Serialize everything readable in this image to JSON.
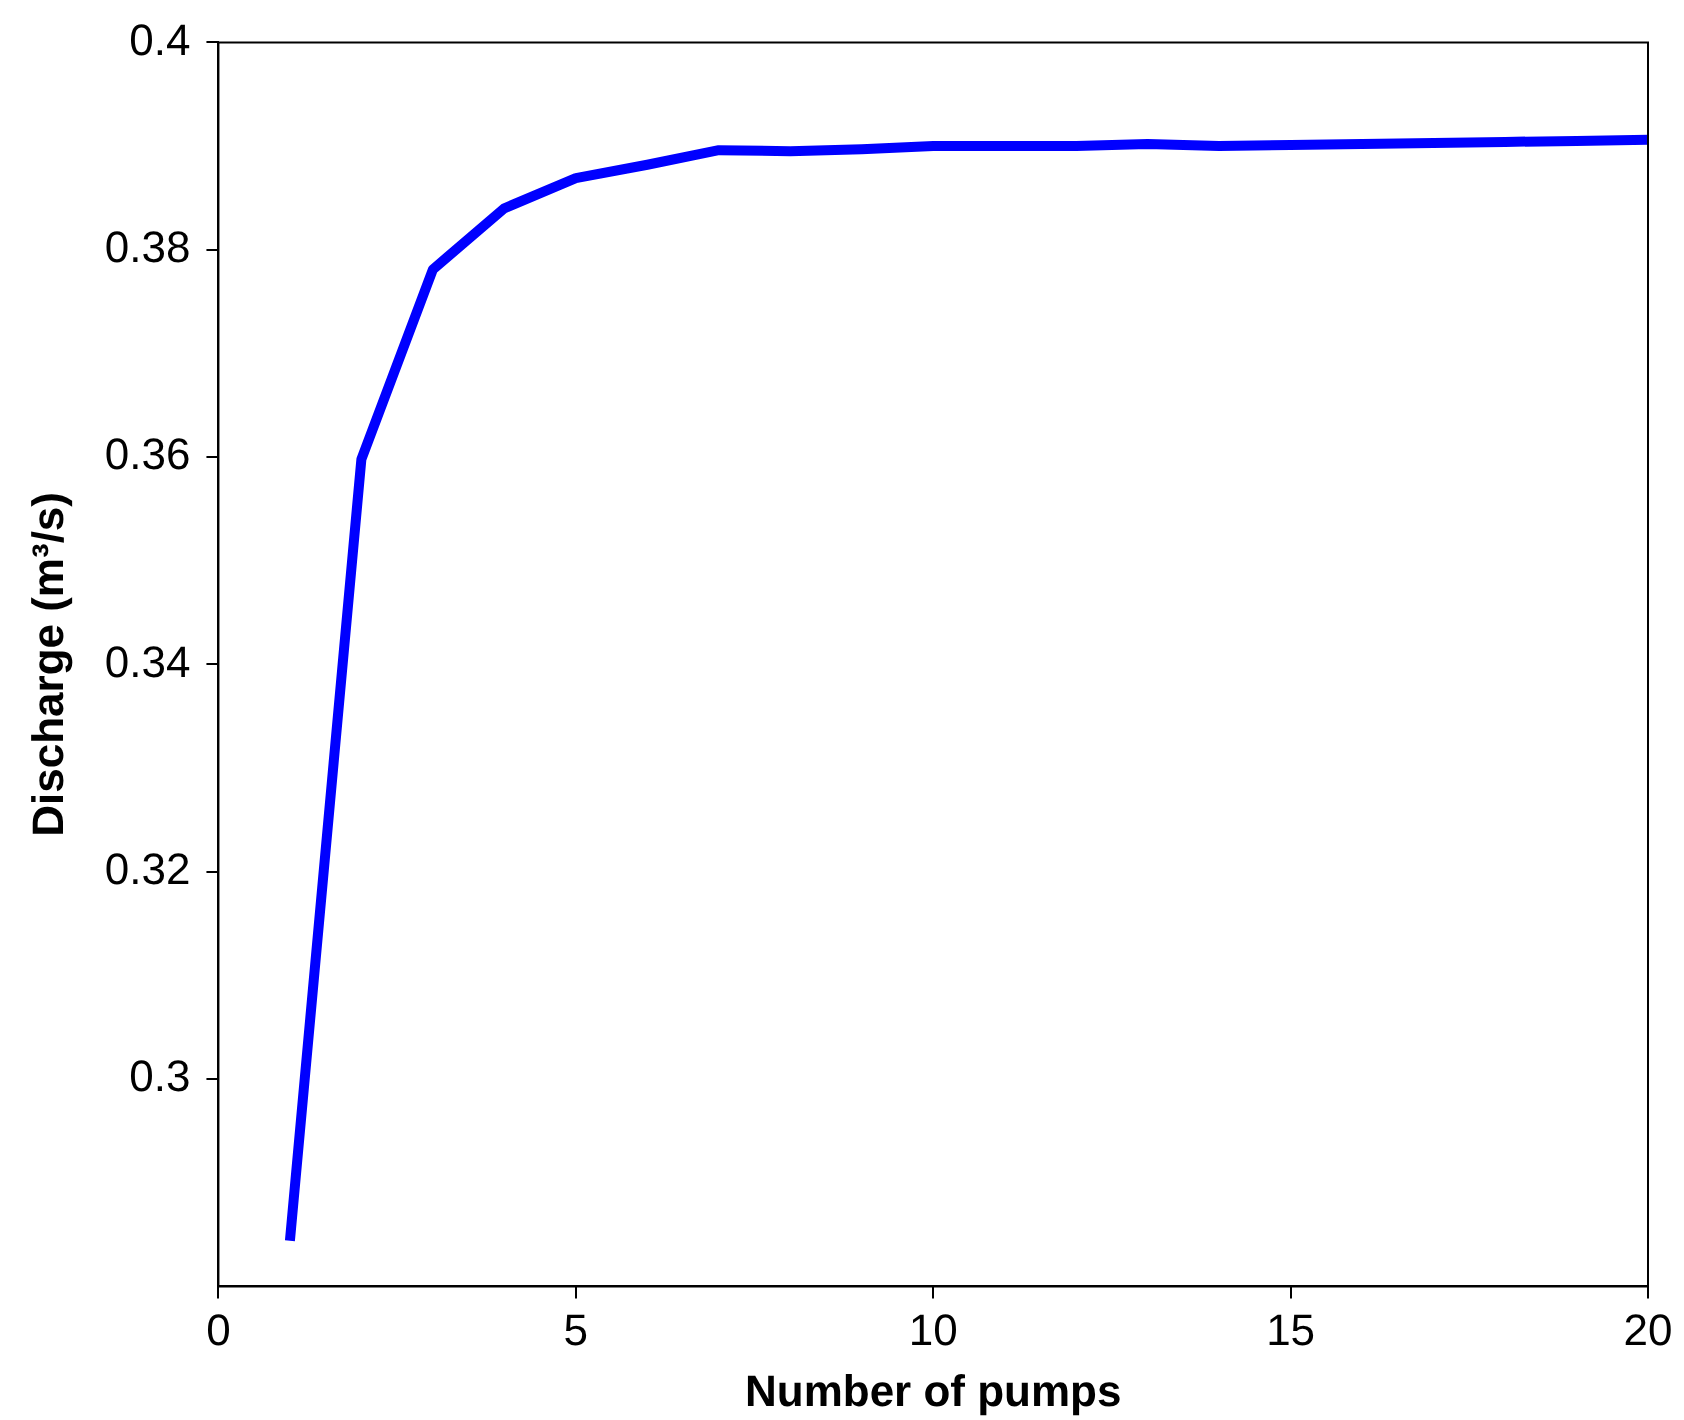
{
  "chart_data": {
    "type": "line",
    "xlabel": "Number of pumps",
    "ylabel": "Discharge (m³/s)",
    "x": [
      1,
      2,
      3,
      4,
      5,
      6,
      7,
      8,
      9,
      10,
      11,
      12,
      13,
      14,
      15,
      16,
      17,
      18,
      19,
      20
    ],
    "series": [
      {
        "color": "#0000ff",
        "values": [
          0.2844,
          0.3598,
          0.3781,
          0.384,
          0.3869,
          0.3882,
          0.3896,
          0.3895,
          0.3897,
          0.39,
          0.39,
          0.39,
          0.3902,
          0.39,
          0.3901,
          0.3902,
          0.3903,
          0.3904,
          0.3905,
          0.3906
        ]
      }
    ],
    "xlim": [
      0,
      20
    ],
    "xticks": [
      0,
      5,
      10,
      15,
      20
    ],
    "ylim": [
      0.28,
      0.4
    ],
    "yticks": [
      0.3,
      0.32,
      0.34,
      0.36,
      0.38,
      0.4
    ],
    "grid": false,
    "legend": false,
    "marker": "none",
    "line_style": "solid"
  }
}
